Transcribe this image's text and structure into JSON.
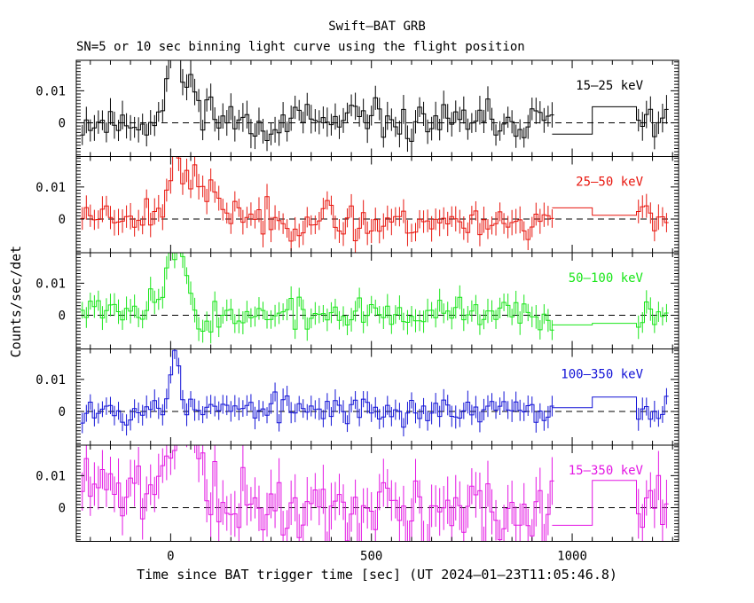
{
  "figure": {
    "title": "Swift–BAT GRB",
    "subtitle": "SN=5 or 10 sec binning light curve using the flight position",
    "xlabel": "Time since BAT trigger time [sec] (UT 2024–01–23T11:05:46.8)",
    "ylabel": "Counts/sec/det"
  },
  "chart_data": {
    "type": "line",
    "style": "step histogram with error bars",
    "xlim": [
      -235,
      1265
    ],
    "x_ticks": [
      0,
      500,
      1000
    ],
    "x_tick_labels": [
      "0",
      "500",
      "1000"
    ],
    "y_ticks": [
      0,
      0.01
    ],
    "y_tick_labels": [
      "0",
      "0.01"
    ],
    "ylim": [
      -0.0105,
      0.0195
    ],
    "zero_line": "dashed",
    "panels": [
      {
        "name": "15–25 keV",
        "color": "#000000",
        "segments": [
          [
            -225,
            950,
            10
          ],
          [
            1160,
            1240,
            10
          ]
        ],
        "long_bins": [
          {
            "x0": 950,
            "x1": 1050,
            "y": -0.0035
          },
          {
            "x0": 1050,
            "x1": 1160,
            "y": 0.005
          }
        ],
        "features": [
          {
            "x": 5,
            "y": 0.019,
            "w": 10
          },
          {
            "x": 30,
            "y": 0.012,
            "w": 30
          },
          {
            "x": 80,
            "y": 0.003,
            "w": 50
          },
          {
            "x": 1225,
            "y": 0.004,
            "w": 15
          },
          {
            "x": 1244,
            "y": -0.007,
            "w": 6
          }
        ],
        "noise_amp": 0.003,
        "err": 0.0038,
        "trend": [
          [
            -225,
            0
          ],
          [
            1240,
            0
          ]
        ],
        "seed": 11
      },
      {
        "name": "25–50 keV",
        "color": "#e8160e",
        "segments": [
          [
            -225,
            950,
            10
          ],
          [
            1160,
            1240,
            10
          ]
        ],
        "long_bins": [
          {
            "x0": 950,
            "x1": 1050,
            "y": 0.0035
          },
          {
            "x0": 1050,
            "x1": 1160,
            "y": 0.0012
          }
        ],
        "features": [
          {
            "x": 10,
            "y": 0.016,
            "w": 10
          },
          {
            "x": 40,
            "y": 0.01,
            "w": 30
          },
          {
            "x": 90,
            "y": 0.004,
            "w": 50
          }
        ],
        "noise_amp": 0.0028,
        "err": 0.0035,
        "trend": [
          [
            -225,
            0.002
          ],
          [
            100,
            0.001
          ],
          [
            400,
            -0.001
          ],
          [
            950,
            -0.0005
          ]
        ],
        "seed": 23
      },
      {
        "name": "50–100 keV",
        "color": "#19e619",
        "segments": [
          [
            -225,
            950,
            10
          ],
          [
            1160,
            1240,
            10
          ]
        ],
        "long_bins": [
          {
            "x0": 950,
            "x1": 1050,
            "y": -0.003
          },
          {
            "x0": 1050,
            "x1": 1160,
            "y": -0.0025
          }
        ],
        "features": [
          {
            "x": 5,
            "y": 0.017,
            "w": 20
          },
          {
            "x": 25,
            "y": 0.006,
            "w": 20
          },
          {
            "x": 75,
            "y": -0.006,
            "w": 10
          }
        ],
        "noise_amp": 0.0026,
        "err": 0.0032,
        "trend": [
          [
            -225,
            0.004
          ],
          [
            0,
            0.002
          ],
          [
            150,
            0.0
          ],
          [
            950,
            0.0
          ]
        ],
        "seed": 37
      },
      {
        "name": "100–350 keV",
        "color": "#1212d6",
        "segments": [
          [
            -225,
            950,
            10
          ],
          [
            1160,
            1240,
            10
          ]
        ],
        "long_bins": [
          {
            "x0": 950,
            "x1": 1050,
            "y": 0.0012
          },
          {
            "x0": 1050,
            "x1": 1160,
            "y": 0.0045
          }
        ],
        "features": [
          {
            "x": 10,
            "y": 0.0165,
            "w": 10
          },
          {
            "x": 20,
            "y": 0.005,
            "w": 10
          },
          {
            "x": 1244,
            "y": 0.011,
            "w": 6
          }
        ],
        "noise_amp": 0.0022,
        "err": 0.003,
        "trend": [
          [
            -225,
            0.001
          ],
          [
            950,
            0.0
          ]
        ],
        "seed": 53
      },
      {
        "name": "15–350 keV",
        "color": "#e316e3",
        "segments": [
          [
            -225,
            950,
            10
          ],
          [
            1160,
            1240,
            10
          ]
        ],
        "long_bins": [
          {
            "x0": 950,
            "x1": 1050,
            "y": -0.0055
          },
          {
            "x0": 1050,
            "x1": 1160,
            "y": 0.0085
          }
        ],
        "features": [
          {
            "x": 15,
            "y": 0.018,
            "w": 30
          },
          {
            "x": 55,
            "y": 0.012,
            "w": 30
          }
        ],
        "noise_amp": 0.0055,
        "err": 0.0065,
        "trend": [
          [
            -225,
            0.006
          ],
          [
            0,
            0.004
          ],
          [
            150,
            0.0
          ],
          [
            950,
            -0.002
          ]
        ],
        "seed": 71
      }
    ]
  }
}
